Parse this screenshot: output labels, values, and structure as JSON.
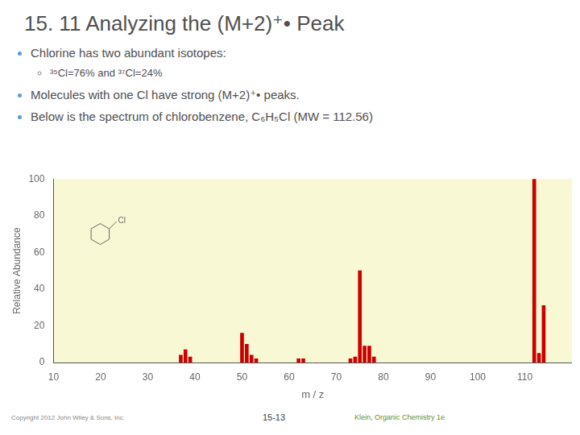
{
  "chart_data": {
    "type": "bar",
    "title": "15. 11 Analyzing the (M+2)⁺• Peak",
    "x_label": "m / z",
    "y_label": "Relative Abundance",
    "x": [
      37,
      38,
      39,
      50,
      51,
      52,
      53,
      62,
      63,
      73,
      74,
      75,
      76,
      77,
      78,
      112,
      113,
      114
    ],
    "values": [
      4,
      7,
      3,
      16,
      10,
      4,
      2,
      2,
      2,
      2,
      3,
      50,
      9,
      9,
      3,
      100,
      5,
      31
    ],
    "color": "#cc0000",
    "xlim": [
      10,
      120
    ],
    "xticks": [
      10,
      20,
      30,
      40,
      50,
      60,
      70,
      80,
      90,
      100,
      110
    ],
    "ylim": [
      0,
      100
    ],
    "yticks": [
      0,
      20,
      40,
      60,
      80,
      100
    ],
    "grid": false,
    "annotations": [
      "Chlorine has two abundant isotopes:",
      "³⁵Cl=76% and ³⁷Cl=24%",
      "Molecules with one Cl have strong (M+2)⁺• peaks.",
      "Below is the spectrum of chlorobenzene, C₆H₅Cl (MW = 112.56)",
      "Copyright 2012 John Wiley & Sons, Inc.",
      "15-13",
      "Klein, Organic Chemistry 1e",
      "Cl"
    ]
  }
}
